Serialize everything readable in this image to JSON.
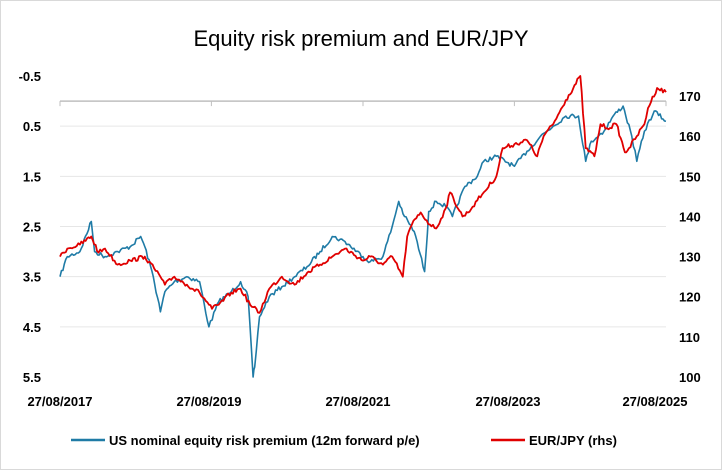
{
  "chart_data": {
    "type": "line",
    "title": "Equity risk premium and EUR/JPY",
    "x_axis": {
      "type": "date",
      "range": [
        "2017-08-27",
        "2025-08-27"
      ],
      "tick_labels": [
        "27/08/2017",
        "27/08/2019",
        "27/08/2021",
        "27/08/2023",
        "27/08/2025"
      ]
    },
    "y_left": {
      "inverted": true,
      "range": [
        -0.5,
        5.5
      ],
      "tick_labels": [
        "-0.5",
        "0.5",
        "1.5",
        "2.5",
        "3.5",
        "4.5",
        "5.5"
      ]
    },
    "y_right": {
      "range": [
        100,
        175
      ],
      "tick_labels": [
        "100",
        "110",
        "120",
        "130",
        "140",
        "150",
        "160",
        "170"
      ]
    },
    "grid": "horizontal",
    "legend_position": "bottom",
    "series": [
      {
        "name": "US nominal equity risk premium (12m forward p/e)",
        "axis": "left",
        "color": "#1f7ba6",
        "points": [
          [
            "2017-08-27",
            3.5
          ],
          [
            "2017-10-01",
            3.1
          ],
          [
            "2017-12-01",
            3.0
          ],
          [
            "2018-01-25",
            2.4
          ],
          [
            "2018-02-10",
            3.0
          ],
          [
            "2018-04-01",
            3.1
          ],
          [
            "2018-06-01",
            3.0
          ],
          [
            "2018-08-01",
            2.9
          ],
          [
            "2018-09-20",
            2.7
          ],
          [
            "2018-10-10",
            2.9
          ],
          [
            "2018-11-20",
            3.5
          ],
          [
            "2018-12-24",
            4.2
          ],
          [
            "2019-01-15",
            3.8
          ],
          [
            "2019-03-01",
            3.6
          ],
          [
            "2019-05-01",
            3.5
          ],
          [
            "2019-07-01",
            3.6
          ],
          [
            "2019-08-15",
            4.5
          ],
          [
            "2019-10-01",
            4.0
          ],
          [
            "2019-12-01",
            3.8
          ],
          [
            "2020-01-15",
            3.6
          ],
          [
            "2020-02-20",
            3.9
          ],
          [
            "2020-03-15",
            5.5
          ],
          [
            "2020-03-23",
            5.3
          ],
          [
            "2020-04-15",
            4.3
          ],
          [
            "2020-06-01",
            3.9
          ],
          [
            "2020-08-01",
            3.7
          ],
          [
            "2020-10-01",
            3.5
          ],
          [
            "2020-12-01",
            3.3
          ],
          [
            "2021-02-01",
            3.0
          ],
          [
            "2021-04-01",
            2.7
          ],
          [
            "2021-06-01",
            2.8
          ],
          [
            "2021-08-27",
            3.1
          ],
          [
            "2021-10-01",
            3.2
          ],
          [
            "2021-12-01",
            3.1
          ],
          [
            "2022-01-15",
            2.5
          ],
          [
            "2022-02-15",
            2.0
          ],
          [
            "2022-03-15",
            2.3
          ],
          [
            "2022-05-01",
            2.6
          ],
          [
            "2022-06-20",
            3.4
          ],
          [
            "2022-07-10",
            2.2
          ],
          [
            "2022-08-15",
            2.0
          ],
          [
            "2022-09-30",
            2.1
          ],
          [
            "2022-11-01",
            2.3
          ],
          [
            "2023-01-01",
            1.7
          ],
          [
            "2023-03-01",
            1.5
          ],
          [
            "2023-04-01",
            1.2
          ],
          [
            "2023-06-01",
            1.1
          ],
          [
            "2023-08-27",
            1.3
          ],
          [
            "2023-10-27",
            1.0
          ],
          [
            "2023-12-31",
            0.7
          ],
          [
            "2024-03-01",
            0.5
          ],
          [
            "2024-05-01",
            0.3
          ],
          [
            "2024-07-01",
            0.3
          ],
          [
            "2024-08-05",
            1.2
          ],
          [
            "2024-09-01",
            0.8
          ],
          [
            "2024-11-01",
            0.6
          ],
          [
            "2024-12-15",
            0.3
          ],
          [
            "2025-02-01",
            0.1
          ],
          [
            "2025-03-15",
            0.7
          ],
          [
            "2025-04-08",
            1.2
          ],
          [
            "2025-05-15",
            0.6
          ],
          [
            "2025-07-01",
            0.2
          ],
          [
            "2025-08-27",
            0.4
          ]
        ]
      },
      {
        "name": "EUR/JPY (rhs)",
        "axis": "right",
        "color": "#e00000",
        "points": [
          [
            "2017-08-27",
            130
          ],
          [
            "2017-10-01",
            132
          ],
          [
            "2017-12-01",
            133
          ],
          [
            "2018-01-25",
            135
          ],
          [
            "2018-03-01",
            131
          ],
          [
            "2018-04-01",
            132
          ],
          [
            "2018-06-01",
            128
          ],
          [
            "2018-08-01",
            129
          ],
          [
            "2018-10-10",
            130
          ],
          [
            "2018-12-24",
            125
          ],
          [
            "2019-01-15",
            123
          ],
          [
            "2019-03-01",
            125
          ],
          [
            "2019-05-01",
            123
          ],
          [
            "2019-07-01",
            121
          ],
          [
            "2019-08-30",
            117
          ],
          [
            "2019-10-01",
            118
          ],
          [
            "2019-12-01",
            121
          ],
          [
            "2020-01-15",
            122
          ],
          [
            "2020-03-01",
            118
          ],
          [
            "2020-04-15",
            116
          ],
          [
            "2020-06-01",
            122
          ],
          [
            "2020-08-01",
            125
          ],
          [
            "2020-10-01",
            123
          ],
          [
            "2020-12-01",
            126
          ],
          [
            "2021-02-01",
            128
          ],
          [
            "2021-04-01",
            130
          ],
          [
            "2021-06-01",
            132
          ],
          [
            "2021-08-27",
            129
          ],
          [
            "2021-10-01",
            130
          ],
          [
            "2021-12-01",
            128
          ],
          [
            "2022-01-15",
            130
          ],
          [
            "2022-03-07",
            125
          ],
          [
            "2022-03-28",
            135
          ],
          [
            "2022-04-20",
            138
          ],
          [
            "2022-06-01",
            141
          ],
          [
            "2022-07-15",
            138
          ],
          [
            "2022-08-15",
            137
          ],
          [
            "2022-09-30",
            142
          ],
          [
            "2022-10-21",
            146
          ],
          [
            "2022-12-20",
            140
          ],
          [
            "2023-01-15",
            141
          ],
          [
            "2023-03-01",
            144
          ],
          [
            "2023-04-01",
            146
          ],
          [
            "2023-06-01",
            150
          ],
          [
            "2023-07-01",
            157
          ],
          [
            "2023-08-27",
            158
          ],
          [
            "2023-10-27",
            159
          ],
          [
            "2023-12-15",
            155
          ],
          [
            "2024-01-15",
            160
          ],
          [
            "2024-03-01",
            163
          ],
          [
            "2024-05-01",
            169
          ],
          [
            "2024-07-10",
            175
          ],
          [
            "2024-08-05",
            157
          ],
          [
            "2024-09-16",
            155
          ],
          [
            "2024-10-15",
            163
          ],
          [
            "2024-11-15",
            162
          ],
          [
            "2024-12-31",
            163
          ],
          [
            "2025-02-10",
            156
          ],
          [
            "2025-03-01",
            157
          ],
          [
            "2025-04-08",
            160
          ],
          [
            "2025-05-15",
            163
          ],
          [
            "2025-06-01",
            167
          ],
          [
            "2025-07-15",
            172
          ],
          [
            "2025-08-27",
            171
          ]
        ]
      }
    ]
  }
}
